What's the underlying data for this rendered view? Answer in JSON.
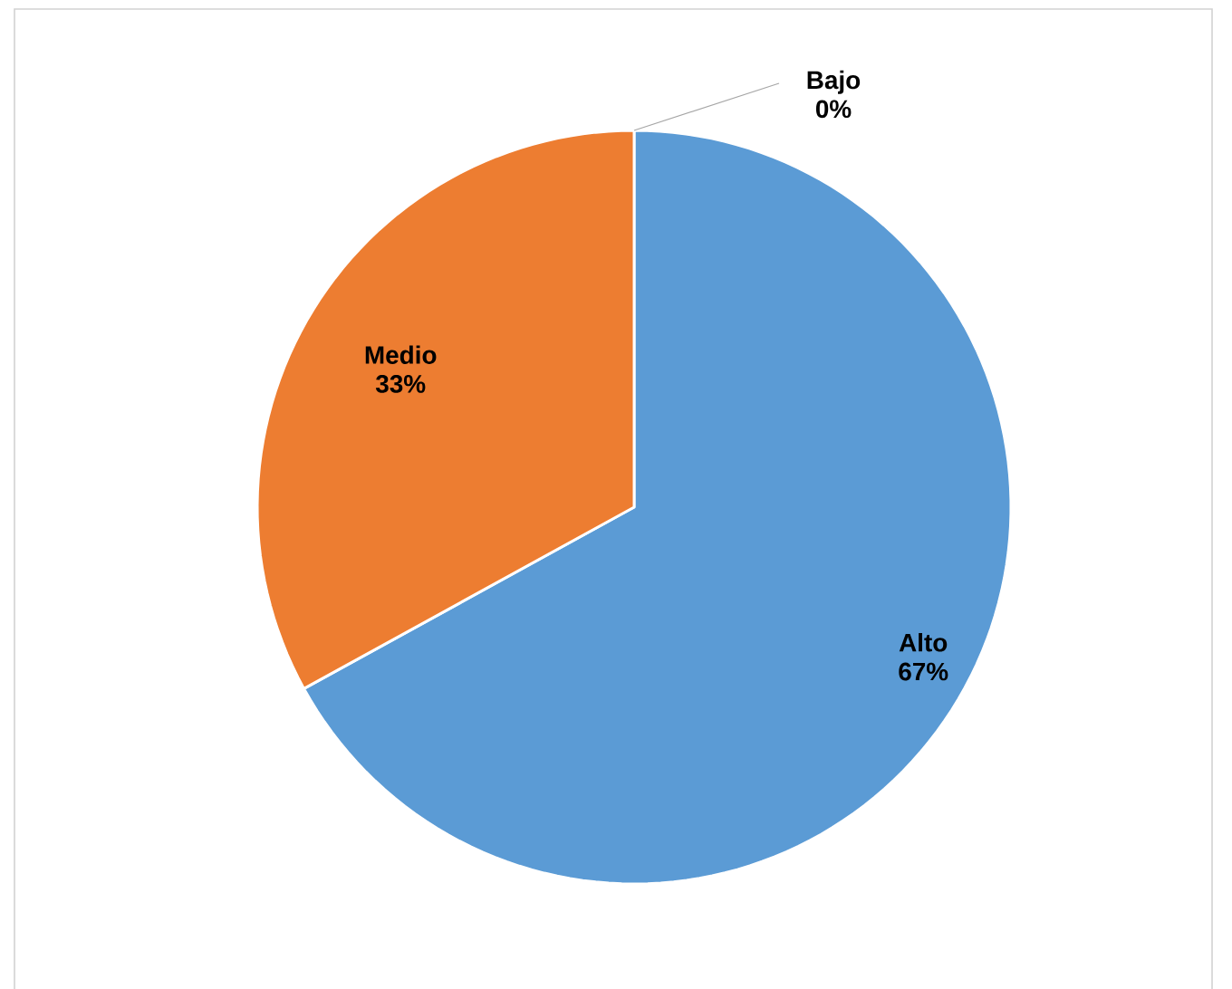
{
  "chart_data": {
    "type": "pie",
    "categories": [
      "Alto",
      "Medio",
      "Bajo"
    ],
    "values": [
      67,
      33,
      0
    ],
    "value_labels": [
      "67%",
      "33%",
      "0%"
    ],
    "colors": [
      "#5b9bd5",
      "#ed7d31",
      "#a5a5a5"
    ],
    "legend": false
  }
}
